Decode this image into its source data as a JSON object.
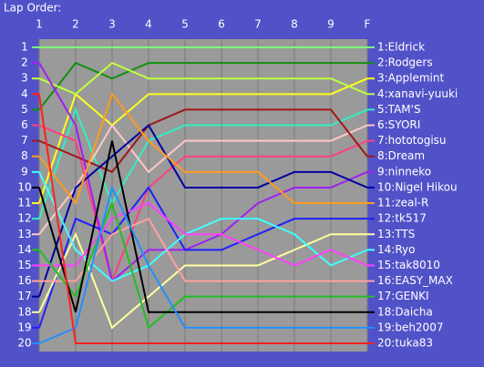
{
  "chart_data": {
    "type": "line",
    "title": "Lap Order:",
    "categories": [
      "1",
      "2",
      "3",
      "4",
      "5",
      "6",
      "7",
      "8",
      "9",
      "F"
    ],
    "ylim": [
      1,
      20
    ],
    "inverted": true,
    "yticks": [
      1,
      2,
      3,
      4,
      5,
      6,
      7,
      8,
      9,
      10,
      11,
      12,
      13,
      14,
      15,
      16,
      17,
      18,
      19,
      20
    ],
    "series": [
      {
        "name": "1:Eldrick",
        "color": "#80ff80",
        "values": [
          1,
          1,
          1,
          1,
          1,
          1,
          1,
          1,
          1,
          1
        ]
      },
      {
        "name": "2:Rodgers",
        "color": "#109010",
        "values": [
          5,
          2,
          3,
          2,
          2,
          2,
          2,
          2,
          2,
          2
        ]
      },
      {
        "name": "3:Applemint",
        "color": "#ffff20",
        "values": [
          11,
          4,
          6,
          4,
          4,
          4,
          4,
          4,
          4,
          3
        ]
      },
      {
        "name": "4:xanavi-yuuki",
        "color": "#c0ff40",
        "values": [
          3,
          4,
          2,
          3,
          3,
          3,
          3,
          3,
          3,
          4
        ]
      },
      {
        "name": "5:TAM'S",
        "color": "#30f0c0",
        "values": [
          12,
          5,
          11,
          7,
          6,
          6,
          6,
          6,
          6,
          5
        ]
      },
      {
        "name": "6:SYORI",
        "color": "#ffc8c8",
        "values": [
          13,
          10,
          6,
          9,
          7,
          7,
          7,
          7,
          7,
          6
        ]
      },
      {
        "name": "7:hototogisu",
        "color": "#ff4080",
        "values": [
          6,
          7,
          16,
          10,
          8,
          8,
          8,
          8,
          8,
          7
        ]
      },
      {
        "name": "8:Dream",
        "color": "#a01818",
        "values": [
          7,
          8,
          9,
          6,
          5,
          5,
          5,
          5,
          5,
          8
        ]
      },
      {
        "name": "9:ninneko",
        "color": "#a020f0",
        "values": [
          2,
          6,
          16,
          14,
          14,
          13,
          11,
          10,
          10,
          9
        ]
      },
      {
        "name": "10:Nigel Hikou",
        "color": "#0000a0",
        "values": [
          17,
          10,
          8,
          6,
          10,
          10,
          10,
          9,
          9,
          10
        ]
      },
      {
        "name": "11:zeal-R",
        "color": "#ff9a20",
        "values": [
          8,
          11,
          4,
          7,
          9,
          9,
          9,
          11,
          11,
          11
        ]
      },
      {
        "name": "12:tk517",
        "color": "#2020ff",
        "values": [
          19,
          12,
          13,
          10,
          14,
          14,
          13,
          12,
          12,
          12
        ]
      },
      {
        "name": "13:TTS",
        "color": "#ffffa0",
        "values": [
          18,
          13,
          19,
          17,
          15,
          15,
          15,
          14,
          13,
          13
        ]
      },
      {
        "name": "14:Ryo",
        "color": "#40ffff",
        "values": [
          9,
          14,
          16,
          15,
          13,
          12,
          12,
          13,
          15,
          14
        ]
      },
      {
        "name": "15:tak8010",
        "color": "#ff40ff",
        "values": [
          15,
          15,
          12,
          11,
          13,
          13,
          14,
          15,
          14,
          15
        ]
      },
      {
        "name": "16:EASY_MAX",
        "color": "#ffa0a0",
        "values": [
          16,
          16,
          13,
          12,
          16,
          16,
          16,
          16,
          16,
          16
        ]
      },
      {
        "name": "17:GENKI",
        "color": "#20c020",
        "values": [
          14,
          17,
          11,
          19,
          17,
          17,
          17,
          17,
          17,
          17
        ]
      },
      {
        "name": "18:Daicha",
        "color": "#000000",
        "values": [
          10,
          18,
          7,
          18,
          18,
          18,
          18,
          18,
          18,
          18
        ]
      },
      {
        "name": "19:beh2007",
        "color": "#2090ff",
        "values": [
          20,
          19,
          10,
          15,
          19,
          19,
          19,
          19,
          19,
          19
        ]
      },
      {
        "name": "20:tuka83",
        "color": "#ff2020",
        "values": [
          4,
          20,
          20,
          20,
          20,
          20,
          20,
          20,
          20,
          20
        ]
      }
    ]
  }
}
